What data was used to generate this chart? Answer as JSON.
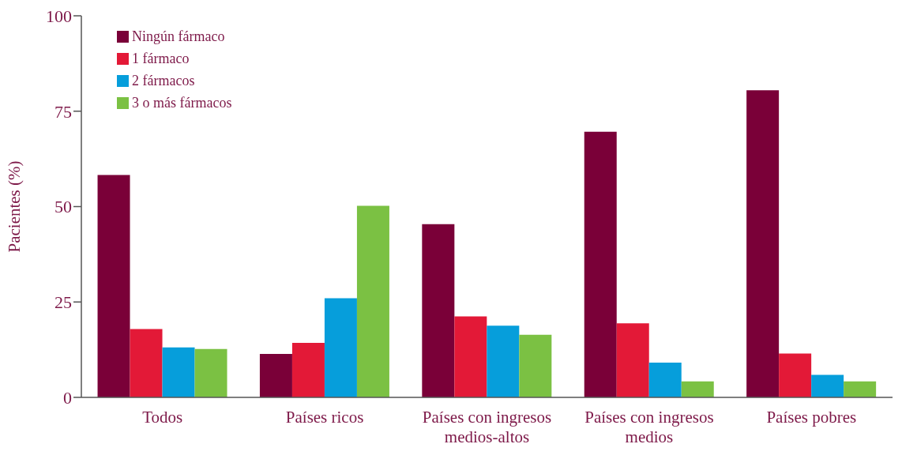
{
  "chart_data": {
    "type": "bar",
    "ylabel": "Pacientes (%)",
    "categories": [
      "Todos",
      "Países ricos",
      "Países con ingresos medios-altos",
      "Países con ingresos medios",
      "Países pobres"
    ],
    "series": [
      {
        "name": "Ningún fármaco",
        "color": "#7a0038",
        "values": [
          58.3,
          11.4,
          45.4,
          69.6,
          80.5
        ]
      },
      {
        "name": "1 fármaco",
        "color": "#e31937",
        "values": [
          17.9,
          14.3,
          21.2,
          19.4,
          11.5
        ]
      },
      {
        "name": "2 fármacos",
        "color": "#069edb",
        "values": [
          13.1,
          26.0,
          18.8,
          9.1,
          5.9
        ]
      },
      {
        "name": "3 o más fármacos",
        "color": "#7bc143",
        "values": [
          12.7,
          50.2,
          16.4,
          4.2,
          4.2
        ]
      }
    ],
    "ylim": [
      0,
      100
    ],
    "yticks": [
      0,
      25,
      50,
      75,
      100
    ],
    "grid": false,
    "legend": "top left"
  }
}
